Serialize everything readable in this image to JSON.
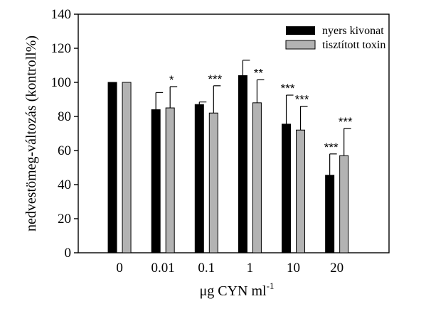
{
  "chart_data": {
    "type": "bar",
    "categories": [
      "0",
      "0.01",
      "0.1",
      "1",
      "10",
      "20"
    ],
    "series": [
      {
        "name": "nyers kivonat",
        "color": "#000000",
        "values": [
          100,
          84,
          87,
          104,
          75.5,
          45.5
        ],
        "error_upper": [
          0,
          10,
          1.5,
          9,
          17,
          12.5
        ],
        "significance": [
          "",
          "",
          "",
          "",
          "***",
          "***"
        ]
      },
      {
        "name": "tisztított toxin",
        "color": "#b3b3b3",
        "values": [
          100,
          85,
          82,
          88,
          72,
          57
        ],
        "error_upper": [
          0,
          12.5,
          16,
          13.5,
          14,
          16
        ],
        "significance": [
          "",
          "*",
          "***",
          "**",
          "***",
          "***"
        ]
      }
    ],
    "ylim": [
      0,
      140
    ],
    "yticks": [
      "0",
      "20",
      "40",
      "60",
      "80",
      "100",
      "120",
      "140"
    ],
    "ylabel": "nedvestömeg-változás (kontroll%)",
    "xlabel": {
      "prefix": "μg CYN ml",
      "superscript": "-1"
    },
    "legend_position": "top-right",
    "grid": false
  }
}
